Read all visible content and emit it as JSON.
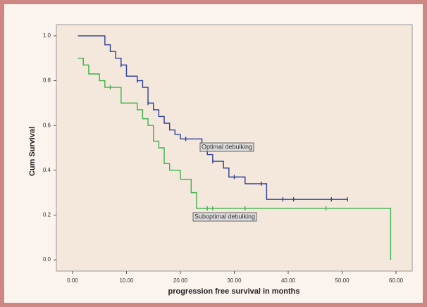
{
  "chart_data": {
    "type": "step",
    "xlabel": "progression free survival in months",
    "ylabel": "Cum Survival",
    "xlim": [
      -3,
      63
    ],
    "ylim": [
      -0.05,
      1.05
    ],
    "xticks": [
      {
        "value": 0,
        "label": "0.00"
      },
      {
        "value": 10,
        "label": "10.00"
      },
      {
        "value": 20,
        "label": "20.00"
      },
      {
        "value": 30,
        "label": "30.00"
      },
      {
        "value": 40,
        "label": "40.00"
      },
      {
        "value": 50,
        "label": "50.00"
      },
      {
        "value": 60,
        "label": "60.00"
      }
    ],
    "yticks": [
      {
        "value": 0,
        "label": "0.0"
      },
      0.2,
      0.4,
      0.6,
      0.8,
      {
        "value": 1,
        "label": "1.0"
      }
    ],
    "annotations": [
      "Optimal debulking",
      "Suboptimal debulking"
    ],
    "series": [
      {
        "color": "#2c3f98",
        "x": [
          1,
          6,
          7,
          8,
          9,
          10,
          12,
          13,
          14,
          15,
          16,
          17,
          18,
          19,
          20,
          24,
          25,
          26,
          28,
          29,
          32,
          36,
          51
        ],
        "values": [
          1.0,
          0.96,
          0.93,
          0.9,
          0.87,
          0.82,
          0.8,
          0.77,
          0.7,
          0.67,
          0.64,
          0.61,
          0.58,
          0.56,
          0.54,
          0.51,
          0.47,
          0.44,
          0.41,
          0.37,
          0.34,
          0.27,
          0.27
        ],
        "censored": {
          "x": [
            9,
            12,
            14,
            21,
            26,
            30,
            35,
            39,
            41,
            48,
            51
          ],
          "values": [
            0.87,
            0.8,
            0.7,
            0.54,
            0.44,
            0.37,
            0.34,
            0.27,
            0.27,
            0.27,
            0.27
          ]
        }
      },
      {
        "color": "#3cb44b",
        "x": [
          1,
          2,
          3,
          5,
          6,
          9,
          12,
          13,
          14,
          15,
          16,
          17,
          18,
          20,
          22,
          23,
          59,
          59
        ],
        "values": [
          0.9,
          0.87,
          0.83,
          0.8,
          0.77,
          0.7,
          0.67,
          0.63,
          0.6,
          0.53,
          0.5,
          0.43,
          0.4,
          0.36,
          0.3,
          0.23,
          0.23,
          0
        ],
        "censored": {
          "x": [
            7,
            25,
            26,
            32,
            47
          ],
          "values": [
            0.77,
            0.23,
            0.23,
            0.23,
            0.23
          ]
        }
      }
    ]
  }
}
